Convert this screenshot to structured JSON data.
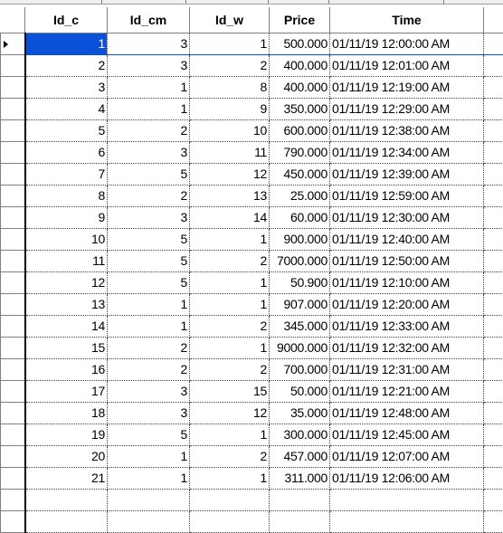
{
  "columns": [
    "Id_c",
    "Id_cm",
    "Id_w",
    "Price",
    "Time"
  ],
  "rows": [
    [
      "1",
      "3",
      "1",
      "500.000",
      "01/11/19 12:00:00 AM"
    ],
    [
      "2",
      "3",
      "2",
      "400.000",
      "01/11/19 12:01:00 AM"
    ],
    [
      "3",
      "1",
      "8",
      "400.000",
      "01/11/19 12:19:00 AM"
    ],
    [
      "4",
      "1",
      "9",
      "350.000",
      "01/11/19 12:29:00 AM"
    ],
    [
      "5",
      "2",
      "10",
      "600.000",
      "01/11/19 12:38:00 AM"
    ],
    [
      "6",
      "3",
      "11",
      "790.000",
      "01/11/19 12:34:00 AM"
    ],
    [
      "7",
      "5",
      "12",
      "450.000",
      "01/11/19 12:39:00 AM"
    ],
    [
      "8",
      "2",
      "13",
      "25.000",
      "01/11/19 12:59:00 AM"
    ],
    [
      "9",
      "3",
      "14",
      "60.000",
      "01/11/19 12:30:00 AM"
    ],
    [
      "10",
      "5",
      "1",
      "900.000",
      "01/11/19 12:40:00 AM"
    ],
    [
      "11",
      "5",
      "2",
      "7000.000",
      "01/11/19 12:50:00 AM"
    ],
    [
      "12",
      "5",
      "1",
      "50.900",
      "01/11/19 12:10:00 AM"
    ],
    [
      "13",
      "1",
      "1",
      "907.000",
      "01/11/19 12:20:00 AM"
    ],
    [
      "14",
      "1",
      "2",
      "345.000",
      "01/11/19 12:33:00 AM"
    ],
    [
      "15",
      "2",
      "1",
      "9000.000",
      "01/11/19 12:32:00 AM"
    ],
    [
      "16",
      "2",
      "2",
      "700.000",
      "01/11/19 12:31:00 AM"
    ],
    [
      "17",
      "3",
      "15",
      "50.000",
      "01/11/19 12:21:00 AM"
    ],
    [
      "18",
      "3",
      "12",
      "35.000",
      "01/11/19 12:48:00 AM"
    ],
    [
      "19",
      "5",
      "1",
      "300.000",
      "01/11/19 12:45:00 AM"
    ],
    [
      "20",
      "1",
      "2",
      "457.000",
      "01/11/19 12:07:00 AM"
    ],
    [
      "21",
      "1",
      "1",
      "311.000",
      "01/11/19 12:06:00 AM"
    ]
  ],
  "selected_row": 0,
  "selection_color": "#0a50d8",
  "current_row_indicator_icon": "current-row-arrow-icon"
}
